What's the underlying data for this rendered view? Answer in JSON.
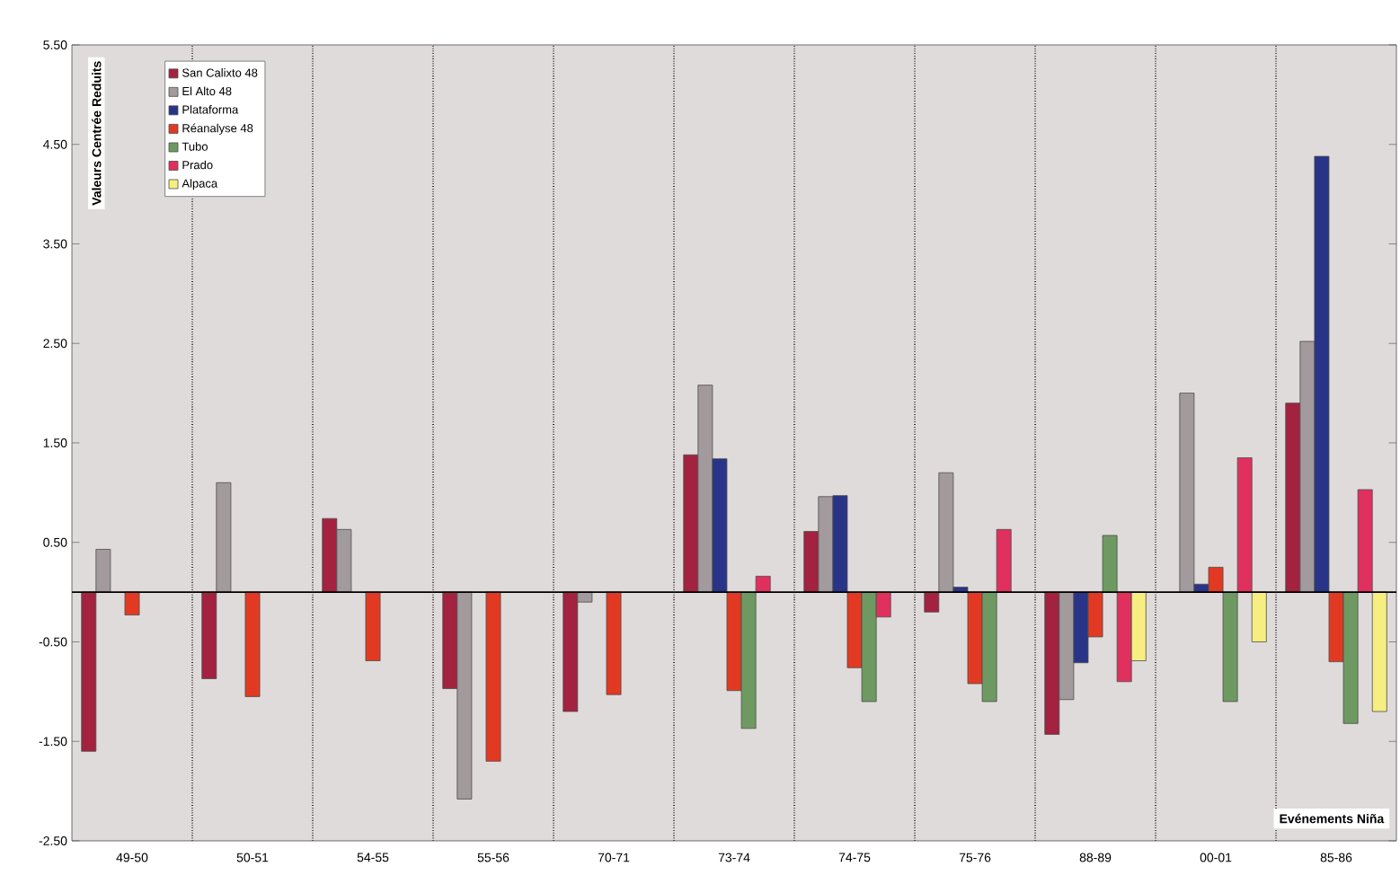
{
  "chart_data": {
    "type": "bar",
    "ylabel": "Valeurs Centrée Reduits",
    "categories": [
      "49-50",
      "50-51",
      "54-55",
      "55-56",
      "70-71",
      "73-74",
      "74-75",
      "75-76",
      "88-89",
      "00-01",
      "85-86"
    ],
    "series": [
      {
        "name": "San Calixto 48",
        "color": "#a3223f",
        "values": [
          -1.6,
          -0.87,
          0.74,
          -0.97,
          -1.2,
          1.38,
          0.61,
          -0.2,
          -1.43,
          null,
          1.9
        ]
      },
      {
        "name": "El Alto 48",
        "color": "#a29a9c",
        "values": [
          0.43,
          1.1,
          0.63,
          -2.08,
          -0.1,
          2.08,
          0.96,
          1.2,
          -1.08,
          2.0,
          2.52
        ]
      },
      {
        "name": "Plataforma",
        "color": "#283487",
        "values": [
          null,
          null,
          null,
          null,
          null,
          1.34,
          0.97,
          0.05,
          -0.71,
          0.08,
          4.38
        ]
      },
      {
        "name": "Réanalyse 48",
        "color": "#e23a22",
        "values": [
          -0.23,
          -1.05,
          -0.69,
          -1.7,
          -1.03,
          -0.99,
          -0.76,
          -0.92,
          -0.45,
          0.25,
          -0.7
        ]
      },
      {
        "name": "Tubo",
        "color": "#6e9a62",
        "values": [
          null,
          null,
          null,
          null,
          null,
          -1.37,
          -1.1,
          -1.1,
          0.57,
          -1.1,
          -1.32
        ]
      },
      {
        "name": "Prado",
        "color": "#e0305e",
        "values": [
          null,
          null,
          null,
          null,
          null,
          0.16,
          -0.25,
          0.63,
          -0.9,
          1.35,
          1.03
        ]
      },
      {
        "name": "Alpaca",
        "color": "#f6ee80",
        "values": [
          null,
          null,
          null,
          null,
          null,
          null,
          null,
          null,
          -0.69,
          -0.5,
          -1.2
        ]
      }
    ],
    "ylim": [
      -2.5,
      5.5
    ],
    "yticks": [
      {
        "value": -2.5,
        "label": "-2.50"
      },
      {
        "value": -1.5,
        "label": "-1.50"
      },
      {
        "value": -0.5,
        "label": "-0.50"
      },
      {
        "value": 0.5,
        "label": "0.50"
      },
      {
        "value": 1.5,
        "label": "1.50"
      },
      {
        "value": 2.5,
        "label": "2.50"
      },
      {
        "value": 3.5,
        "label": "3.50"
      },
      {
        "value": 4.5,
        "label": "4.50"
      },
      {
        "value": 5.5,
        "label": "5.50"
      }
    ],
    "grid": "x",
    "legend": "top left",
    "annotations": [
      "Evénements Niña"
    ]
  }
}
